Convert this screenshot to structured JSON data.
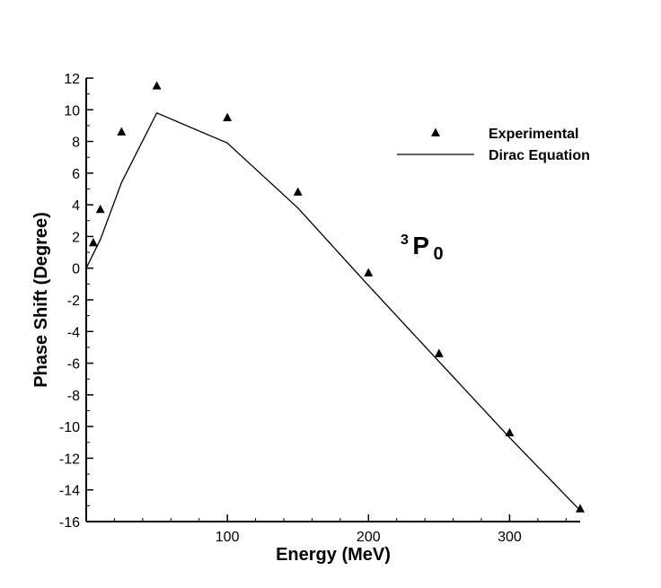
{
  "chart_data": {
    "type": "line",
    "title": "",
    "xlabel": "Energy (MeV)",
    "ylabel": "Phase Shift (Degree)",
    "xlim": [
      0,
      350
    ],
    "ylim": [
      -16,
      12
    ],
    "x_ticks": [
      100,
      200,
      300
    ],
    "y_ticks": [
      12,
      10,
      8,
      6,
      4,
      2,
      0,
      -2,
      -4,
      -6,
      -8,
      -10,
      -12,
      -14,
      -16
    ],
    "legend_position": "top-right",
    "annotation": {
      "sup": "3",
      "main": "P",
      "sub": "0"
    },
    "series": [
      {
        "name": "Experimental",
        "style": "triangle-markers",
        "x": [
          5,
          10,
          25,
          50,
          100,
          150,
          200,
          250,
          300,
          350
        ],
        "y": [
          1.6,
          3.7,
          8.6,
          11.5,
          9.5,
          4.8,
          -0.3,
          -5.4,
          -10.4,
          -15.2
        ]
      },
      {
        "name": "Dirac Equation",
        "style": "solid-line",
        "x": [
          0,
          10,
          25,
          50,
          100,
          150,
          200,
          250,
          300,
          350
        ],
        "y": [
          0,
          1.8,
          5.4,
          9.8,
          7.9,
          3.8,
          -1.1,
          -5.9,
          -10.7,
          -15.3
        ]
      }
    ]
  }
}
